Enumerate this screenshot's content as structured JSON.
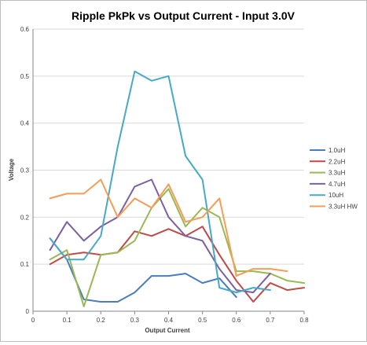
{
  "chart_data": {
    "type": "line",
    "title": "Ripple PkPk vs Output Current - Input 3.0V",
    "xlabel": "Output Current",
    "ylabel": "Voltage",
    "xlim": [
      0,
      0.8
    ],
    "ylim": [
      0,
      0.6
    ],
    "xticks": [
      "0",
      "0.1",
      "0.2",
      "0.3",
      "0.4",
      "0.5",
      "0.6",
      "0.7",
      "0.8"
    ],
    "yticks": [
      "0",
      "0.1",
      "0.2",
      "0.3",
      "0.4",
      "0.5",
      "0.6"
    ],
    "grid": "horizontal",
    "legend_position": "right",
    "series": [
      {
        "name": "1.0uH",
        "color": "#4a7ebb",
        "x": [
          0.05,
          0.1,
          0.15,
          0.2,
          0.25,
          0.3,
          0.35,
          0.4,
          0.45,
          0.5,
          0.55,
          0.6
        ],
        "y": [
          0.155,
          0.11,
          0.025,
          0.02,
          0.02,
          0.04,
          0.075,
          0.075,
          0.08,
          0.06,
          0.07,
          0.03
        ]
      },
      {
        "name": "2.2uH",
        "color": "#be4b48",
        "x": [
          0.05,
          0.1,
          0.15,
          0.2,
          0.25,
          0.3,
          0.35,
          0.4,
          0.45,
          0.5,
          0.55,
          0.6,
          0.65,
          0.7,
          0.75,
          0.8
        ],
        "y": [
          0.1,
          0.12,
          0.125,
          0.12,
          0.125,
          0.17,
          0.16,
          0.175,
          0.16,
          0.18,
          0.12,
          0.065,
          0.02,
          0.06,
          0.045,
          0.05
        ]
      },
      {
        "name": "3.3uH",
        "color": "#98b954",
        "x": [
          0.05,
          0.1,
          0.15,
          0.2,
          0.25,
          0.3,
          0.35,
          0.4,
          0.45,
          0.5,
          0.55,
          0.6,
          0.65,
          0.7,
          0.75,
          0.8
        ],
        "y": [
          0.11,
          0.13,
          0.01,
          0.12,
          0.125,
          0.15,
          0.22,
          0.26,
          0.18,
          0.22,
          0.2,
          0.085,
          0.085,
          0.08,
          0.065,
          0.06
        ]
      },
      {
        "name": "4.7uH",
        "color": "#7d60a0",
        "x": [
          0.05,
          0.1,
          0.15,
          0.2,
          0.25,
          0.3,
          0.35,
          0.4,
          0.45,
          0.5,
          0.55,
          0.6,
          0.65,
          0.7
        ],
        "y": [
          0.13,
          0.19,
          0.15,
          0.18,
          0.2,
          0.265,
          0.28,
          0.2,
          0.16,
          0.15,
          0.09,
          0.045,
          0.04,
          0.08
        ]
      },
      {
        "name": "10uH",
        "color": "#46aac5",
        "x": [
          0.05,
          0.1,
          0.15,
          0.2,
          0.25,
          0.3,
          0.35,
          0.4,
          0.45,
          0.5,
          0.55,
          0.6,
          0.65,
          0.7
        ],
        "y": [
          0.155,
          0.11,
          0.11,
          0.16,
          0.35,
          0.51,
          0.49,
          0.5,
          0.33,
          0.28,
          0.05,
          0.04,
          0.05,
          0.045
        ]
      },
      {
        "name": "3.3uH HW",
        "color": "#f59d56",
        "x": [
          0.05,
          0.1,
          0.15,
          0.2,
          0.25,
          0.3,
          0.35,
          0.4,
          0.45,
          0.5,
          0.55,
          0.6,
          0.65,
          0.7,
          0.75
        ],
        "y": [
          0.24,
          0.25,
          0.25,
          0.28,
          0.2,
          0.24,
          0.22,
          0.27,
          0.19,
          0.2,
          0.24,
          0.075,
          0.09,
          0.09,
          0.085
        ]
      }
    ]
  }
}
